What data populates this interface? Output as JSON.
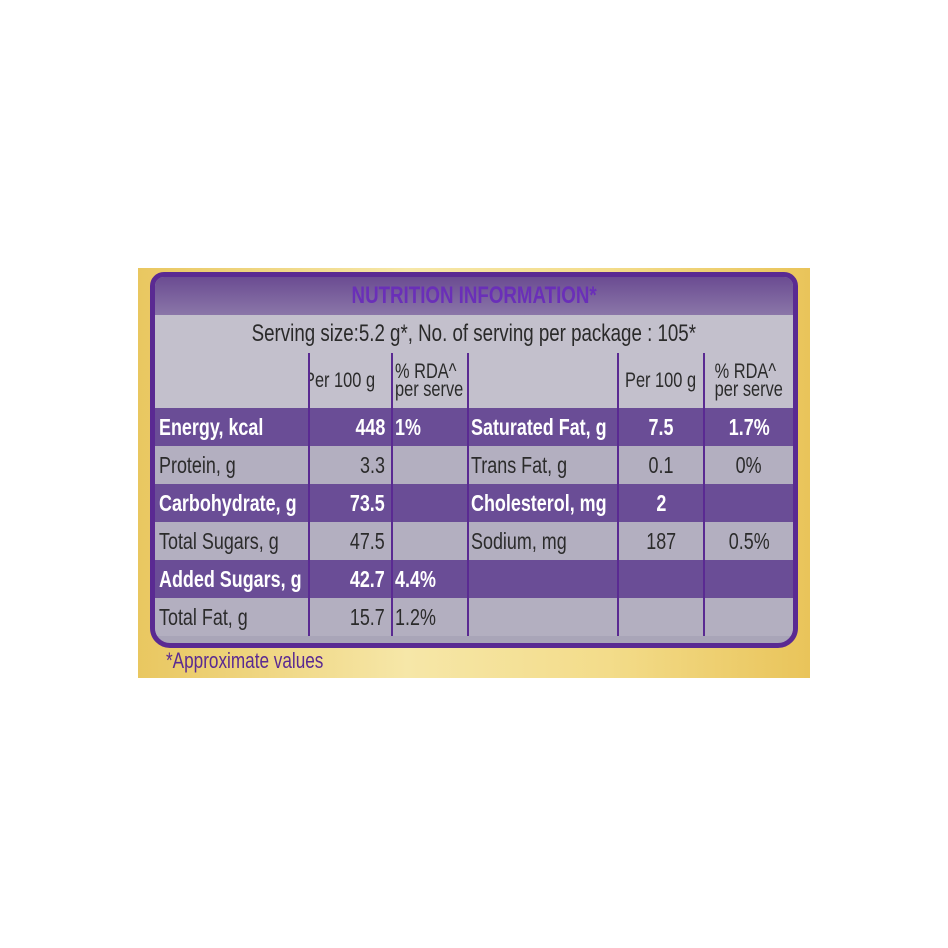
{
  "title": "NUTRITION INFORMATION*",
  "serving": "Serving size:5.2 g*, No. of serving per package : 105*",
  "headers": {
    "per100": "Per 100 g",
    "rda1": "% RDA^",
    "rda2": "per serve"
  },
  "rows": [
    {
      "l1": "Energy, kcal",
      "v1": "448",
      "r1": "1%",
      "l2": "Saturated Fat, g",
      "v2": "7.5",
      "r2": "1.7%"
    },
    {
      "l1": "Protein, g",
      "v1": "3.3",
      "r1": "",
      "l2": "Trans Fat, g",
      "v2": "0.1",
      "r2": "0%"
    },
    {
      "l1": "Carbohydrate, g",
      "v1": "73.5",
      "r1": "",
      "l2": "Cholesterol, mg",
      "v2": "2",
      "r2": ""
    },
    {
      "l1": "Total Sugars, g",
      "v1": "47.5",
      "r1": "",
      "l2": "Sodium, mg",
      "v2": "187",
      "r2": "0.5%"
    },
    {
      "l1": "Added Sugars, g",
      "v1": "42.7",
      "r1": "4.4%",
      "l2": "",
      "v2": "",
      "r2": ""
    },
    {
      "l1": "Total Fat, g",
      "v1": "15.7",
      "r1": "1.2%",
      "l2": "",
      "v2": "",
      "r2": ""
    }
  ],
  "footnote": "*Approximate values",
  "colors": {
    "purple": "#5a2a92",
    "gold": "#e9c760"
  }
}
